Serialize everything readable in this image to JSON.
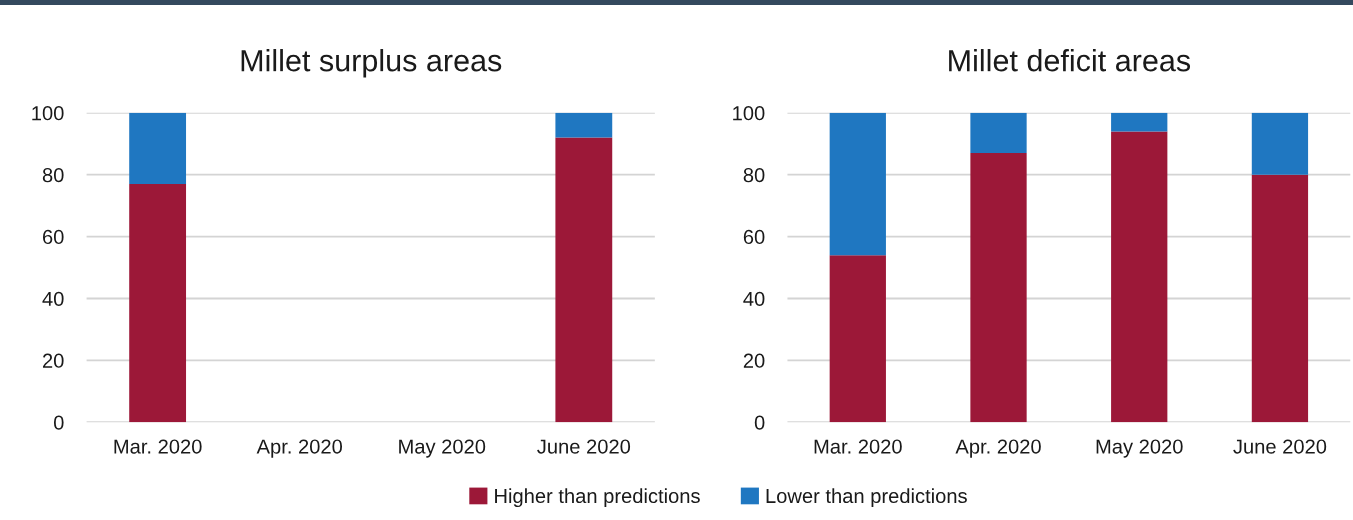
{
  "chart_data": [
    {
      "type": "bar",
      "title": "Millet surplus areas",
      "categories": [
        "Mar. 2020",
        "Apr. 2020",
        "May 2020",
        "June 2020"
      ],
      "stacked": true,
      "series": [
        {
          "name": "Higher than predictions",
          "color": "#9c1838",
          "values": [
            77,
            null,
            null,
            92
          ]
        },
        {
          "name": "Lower than predictions",
          "color": "#1f77c1",
          "values": [
            23,
            null,
            null,
            8
          ]
        }
      ],
      "ylim": [
        0,
        100
      ],
      "yticks": [
        0,
        20,
        40,
        60,
        80,
        100
      ],
      "grid": "y",
      "legend": "bottom"
    },
    {
      "type": "bar",
      "title": "Millet deficit areas",
      "categories": [
        "Mar. 2020",
        "Apr. 2020",
        "May 2020",
        "June 2020"
      ],
      "stacked": true,
      "series": [
        {
          "name": "Higher than predictions",
          "color": "#9c1838",
          "values": [
            54,
            87,
            94,
            80
          ]
        },
        {
          "name": "Lower than predictions",
          "color": "#1f77c1",
          "values": [
            46,
            13,
            6,
            20
          ]
        }
      ],
      "ylim": [
        0,
        100
      ],
      "yticks": [
        0,
        20,
        40,
        60,
        80,
        100
      ],
      "grid": "y",
      "legend": "bottom"
    }
  ]
}
